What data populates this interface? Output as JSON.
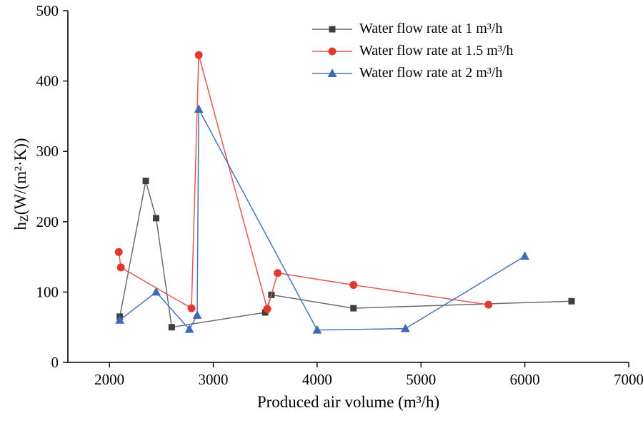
{
  "figure": {
    "background": "#ffffff"
  },
  "labels": {
    "x": "Produced air volume (m³/h)",
    "y_pre": "h",
    "y_sub": "Z",
    "y_post": "(W/(m²·K))"
  },
  "chart_data": {
    "type": "line",
    "title": "",
    "xlabel": "Produced air volume (m³/h)",
    "ylabel": "h_Z (W/(m²·K))",
    "xlim": [
      1600,
      7000
    ],
    "ylim": [
      0,
      500
    ],
    "xticks": [
      2000,
      3000,
      4000,
      5000,
      6000,
      7000
    ],
    "yticks": [
      0,
      100,
      200,
      300,
      400,
      500
    ],
    "grid": false,
    "legend_position": "top-right-inside",
    "series": [
      {
        "name": "Water flow rate at 1 m³/h",
        "color": "#3f3f3f",
        "line_color": "#6b6b6b",
        "marker": "square",
        "points": [
          [
            2100,
            65
          ],
          [
            2350,
            258
          ],
          [
            2450,
            205
          ],
          [
            2600,
            50
          ],
          [
            3500,
            71
          ],
          [
            3560,
            96
          ],
          [
            4350,
            77
          ],
          [
            6450,
            87
          ]
        ]
      },
      {
        "name": "Water flow rate at 1.5 m³/h",
        "color": "#e0392f",
        "line_color": "#e8554c",
        "marker": "circle",
        "points": [
          [
            2090,
            157
          ],
          [
            2110,
            135
          ],
          [
            2790,
            77
          ],
          [
            2860,
            437
          ],
          [
            3520,
            76
          ],
          [
            3620,
            127
          ],
          [
            4350,
            110
          ],
          [
            5650,
            82
          ]
        ]
      },
      {
        "name": "Water flow rate at 2 m³/h",
        "color": "#3f69b1",
        "line_color": "#4a74ba",
        "marker": "triangle",
        "points": [
          [
            2100,
            60
          ],
          [
            2450,
            100
          ],
          [
            2770,
            47
          ],
          [
            2845,
            67
          ],
          [
            2860,
            360
          ],
          [
            4000,
            46
          ],
          [
            4850,
            48
          ],
          [
            6000,
            151
          ]
        ]
      }
    ]
  }
}
